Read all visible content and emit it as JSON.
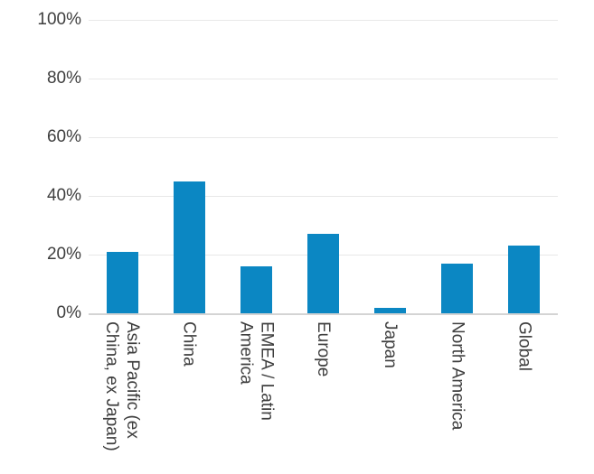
{
  "chart_data": {
    "type": "bar",
    "categories": [
      "Asia Pacific (ex\nChina, ex Japan)",
      "China",
      "EMEA / Latin\nAmerica",
      "Europe",
      "Japan",
      "North America",
      "Global"
    ],
    "values": [
      21,
      45,
      16,
      27,
      2,
      17,
      23
    ],
    "title": "",
    "xlabel": "",
    "ylabel": "",
    "ylim": [
      0,
      100
    ],
    "yticks": [
      0,
      20,
      40,
      60,
      80,
      100
    ],
    "ytick_labels": [
      "0%",
      "20%",
      "40%",
      "60%",
      "80%",
      "100%"
    ],
    "grid": true,
    "legend_position": "none",
    "value_unit": "percent"
  },
  "colors": {
    "bar": "#0b87c3",
    "gridline": "#e8e8e8",
    "baseline": "#d4d4d4",
    "text": "#3e3e3e",
    "background": "#ffffff"
  }
}
